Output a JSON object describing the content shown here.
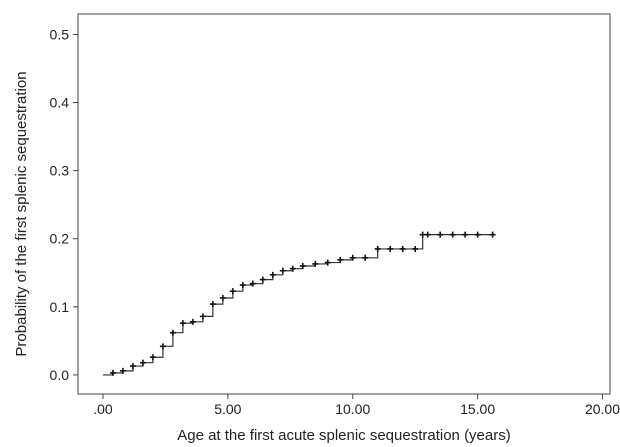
{
  "chart_data": {
    "type": "line",
    "title": "",
    "xlabel": "Age at the first acute splenic sequestration (years)",
    "ylabel": "Probability of the first splenic sequestration",
    "xlim": [
      -1.0,
      20.3
    ],
    "ylim": [
      -0.028,
      0.53
    ],
    "x_ticks": [
      ".00",
      "5.00",
      "10.00",
      "15.00",
      "20.00"
    ],
    "y_ticks": [
      "0.0",
      "0.1",
      "0.2",
      "0.3",
      "0.4",
      "0.5"
    ],
    "grid": false,
    "legend": "none",
    "series": [
      {
        "style": "step",
        "color": "#333333",
        "censor_marker": "+",
        "x": [
          0.0,
          0.4,
          0.8,
          1.2,
          1.6,
          2.0,
          2.4,
          2.8,
          3.2,
          3.6,
          4.0,
          4.4,
          4.8,
          5.2,
          5.6,
          6.0,
          6.4,
          6.8,
          7.2,
          7.6,
          8.0,
          8.5,
          9.0,
          9.5,
          10.0,
          10.5,
          11.0,
          11.5,
          12.0,
          12.5,
          12.8,
          13.0,
          13.5,
          14.0,
          14.5,
          15.0,
          15.6
        ],
        "y": [
          0.0,
          0.003,
          0.006,
          0.013,
          0.018,
          0.026,
          0.042,
          0.062,
          0.076,
          0.078,
          0.086,
          0.104,
          0.113,
          0.123,
          0.132,
          0.134,
          0.14,
          0.147,
          0.153,
          0.156,
          0.16,
          0.163,
          0.165,
          0.169,
          0.172,
          0.172,
          0.185,
          0.185,
          0.185,
          0.185,
          0.206,
          0.206,
          0.206,
          0.206,
          0.206,
          0.206,
          0.206
        ]
      }
    ]
  }
}
